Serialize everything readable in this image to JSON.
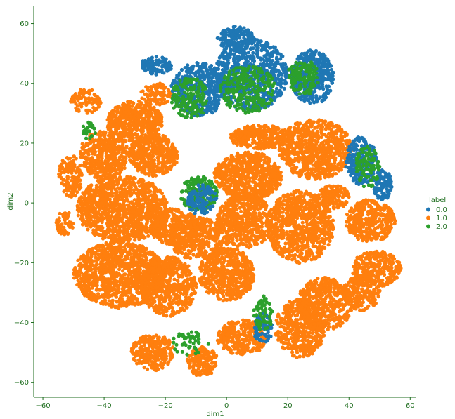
{
  "chart_data": {
    "type": "scatter",
    "title": "",
    "xlabel": "dim1",
    "ylabel": "dim2",
    "xlim": [
      -63,
      62
    ],
    "ylim": [
      -65,
      66
    ],
    "xticks": [
      -60,
      -40,
      -20,
      0,
      20,
      40,
      60
    ],
    "yticks": [
      -60,
      -40,
      -20,
      0,
      20,
      40,
      60
    ],
    "grid": false,
    "legend": {
      "title": "label",
      "placement": "right",
      "entries": [
        "0.0",
        "1.0",
        "2.0"
      ]
    },
    "series": [
      {
        "name": "0.0",
        "color": "#1f77b4"
      },
      {
        "name": "1.0",
        "color": "#ff7f0e"
      },
      {
        "name": "2.0",
        "color": "#2ca02c"
      }
    ],
    "clusters": [
      {
        "label": "1.0",
        "cx": -30,
        "cy": 27,
        "rx": 9,
        "ry": 7,
        "n": 520
      },
      {
        "label": "1.0",
        "cx": -40,
        "cy": 16,
        "rx": 8,
        "ry": 8,
        "n": 420
      },
      {
        "label": "1.0",
        "cx": -24,
        "cy": 16,
        "rx": 8,
        "ry": 7,
        "n": 420
      },
      {
        "label": "1.0",
        "cx": -34,
        "cy": -2,
        "rx": 15,
        "ry": 11,
        "n": 1100
      },
      {
        "label": "1.0",
        "cx": -35,
        "cy": -24,
        "rx": 15,
        "ry": 11,
        "n": 1100
      },
      {
        "label": "1.0",
        "cx": -17,
        "cy": -8,
        "rx": 8,
        "ry": 6,
        "n": 320
      },
      {
        "label": "1.0",
        "cx": -9,
        "cy": -12,
        "rx": 10,
        "ry": 7,
        "n": 420
      },
      {
        "label": "1.0",
        "cx": -19,
        "cy": -28,
        "rx": 9,
        "ry": 10,
        "n": 560
      },
      {
        "label": "1.0",
        "cx": 0,
        "cy": -24,
        "rx": 9,
        "ry": 9,
        "n": 560
      },
      {
        "label": "1.0",
        "cx": 6,
        "cy": -6,
        "rx": 9,
        "ry": 9,
        "n": 560
      },
      {
        "label": "1.0",
        "cx": 7,
        "cy": 9,
        "rx": 11,
        "ry": 8,
        "n": 700
      },
      {
        "label": "1.0",
        "cx": 11,
        "cy": 22,
        "rx": 10,
        "ry": 4,
        "n": 320
      },
      {
        "label": "1.0",
        "cx": 29,
        "cy": 18,
        "rx": 12,
        "ry": 10,
        "n": 800
      },
      {
        "label": "1.0",
        "cx": 35,
        "cy": 2,
        "rx": 5,
        "ry": 4,
        "n": 140
      },
      {
        "label": "1.0",
        "cx": 24,
        "cy": -8,
        "rx": 11,
        "ry": 12,
        "n": 800
      },
      {
        "label": "1.0",
        "cx": 47,
        "cy": -6,
        "rx": 8,
        "ry": 7,
        "n": 360
      },
      {
        "label": "1.0",
        "cx": 49,
        "cy": -22,
        "rx": 8,
        "ry": 6,
        "n": 300
      },
      {
        "label": "1.0",
        "cx": 32,
        "cy": -34,
        "rx": 9,
        "ry": 9,
        "n": 480
      },
      {
        "label": "1.0",
        "cx": 44,
        "cy": -30,
        "rx": 6,
        "ry": 6,
        "n": 220
      },
      {
        "label": "1.0",
        "cx": 24,
        "cy": -42,
        "rx": 8,
        "ry": 10,
        "n": 460
      },
      {
        "label": "1.0",
        "cx": 5,
        "cy": -45,
        "rx": 8,
        "ry": 6,
        "n": 300
      },
      {
        "label": "1.0",
        "cx": -24,
        "cy": -50,
        "rx": 7,
        "ry": 6,
        "n": 260
      },
      {
        "label": "1.0",
        "cx": -8,
        "cy": -53,
        "rx": 5,
        "ry": 5,
        "n": 160
      },
      {
        "label": "1.0",
        "cx": -51,
        "cy": 9,
        "rx": 4,
        "ry": 7,
        "n": 150
      },
      {
        "label": "1.0",
        "cx": -53,
        "cy": -7,
        "rx": 3,
        "ry": 4,
        "n": 60
      },
      {
        "label": "1.0",
        "cx": -46,
        "cy": 34,
        "rx": 5,
        "ry": 4,
        "n": 90
      },
      {
        "label": "1.0",
        "cx": -23,
        "cy": 36,
        "rx": 5,
        "ry": 4,
        "n": 90
      },
      {
        "label": "0.0",
        "cx": -23,
        "cy": 46,
        "rx": 5,
        "ry": 3,
        "n": 110
      },
      {
        "label": "0.0",
        "cx": -9,
        "cy": 38,
        "rx": 9,
        "ry": 9,
        "n": 420
      },
      {
        "label": "2.0",
        "cx": -12,
        "cy": 35,
        "rx": 6,
        "ry": 7,
        "n": 160
      },
      {
        "label": "0.0",
        "cx": 8,
        "cy": 43,
        "rx": 12,
        "ry": 12,
        "n": 700
      },
      {
        "label": "2.0",
        "cx": 7,
        "cy": 38,
        "rx": 9,
        "ry": 8,
        "n": 260
      },
      {
        "label": "0.0",
        "cx": 3,
        "cy": 55,
        "rx": 6,
        "ry": 4,
        "n": 160
      },
      {
        "label": "0.0",
        "cx": 28,
        "cy": 42,
        "rx": 7,
        "ry": 9,
        "n": 380
      },
      {
        "label": "2.0",
        "cx": 25,
        "cy": 42,
        "rx": 5,
        "ry": 6,
        "n": 140
      },
      {
        "label": "0.0",
        "cx": 44,
        "cy": 14,
        "rx": 5,
        "ry": 8,
        "n": 220
      },
      {
        "label": "0.0",
        "cx": 51,
        "cy": 6,
        "rx": 3,
        "ry": 5,
        "n": 110
      },
      {
        "label": "2.0",
        "cx": 46,
        "cy": 12,
        "rx": 4,
        "ry": 7,
        "n": 90
      },
      {
        "label": "2.0",
        "cx": -9,
        "cy": 3,
        "rx": 6,
        "ry": 6,
        "n": 200
      },
      {
        "label": "0.0",
        "cx": -8,
        "cy": 1,
        "rx": 5,
        "ry": 5,
        "n": 110
      },
      {
        "label": "0.0",
        "cx": 12,
        "cy": -42,
        "rx": 3,
        "ry": 5,
        "n": 80
      },
      {
        "label": "2.0",
        "cx": 12,
        "cy": -37,
        "rx": 3,
        "ry": 6,
        "n": 60
      },
      {
        "label": "2.0",
        "cx": -12,
        "cy": -47,
        "rx": 6,
        "ry": 4,
        "n": 45
      },
      {
        "label": "2.0",
        "cx": -45,
        "cy": 24,
        "rx": 2,
        "ry": 3,
        "n": 25
      }
    ]
  }
}
